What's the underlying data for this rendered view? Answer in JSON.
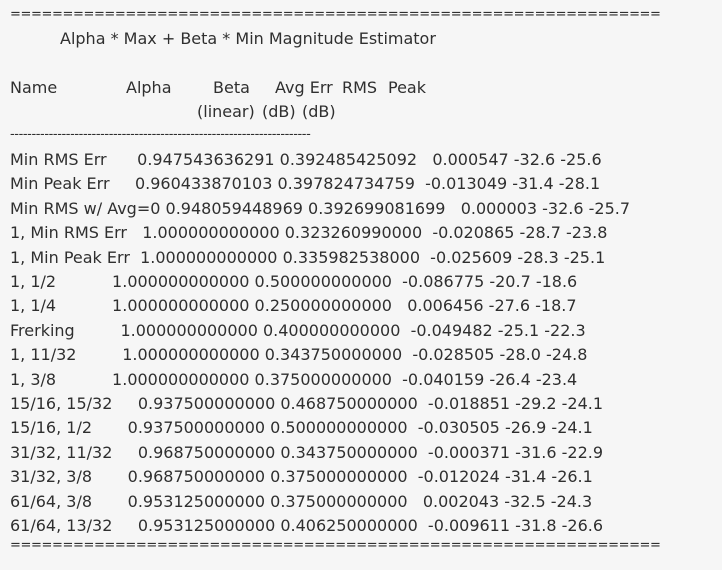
{
  "top_rule": "===================================================================",
  "title": "Alpha * Max + Beta * Min Magnitude Estimator",
  "header": {
    "name": "Name",
    "alpha": "Alpha",
    "beta": "Beta",
    "avg_err": "Avg Err",
    "rms": "RMS",
    "peak": "Peak",
    "linear": "(linear)",
    "rms_unit": "(dB)",
    "peak_unit": "(dB)"
  },
  "dash_rule": "----------------------------------------------------------------------",
  "rows": [
    "Min RMS Err      0.947543636291 0.392485425092   0.000547 -32.6 -25.6",
    "Min Peak Err     0.960433870103 0.397824734759  -0.013049 -31.4 -28.1",
    "Min RMS w/ Avg=0 0.948059448969 0.392699081699   0.000003 -32.6 -25.7",
    "1, Min RMS Err   1.000000000000 0.323260990000  -0.020865 -28.7 -23.8",
    "1, Min Peak Err  1.000000000000 0.335982538000  -0.025609 -28.3 -25.1",
    "1, 1/2           1.000000000000 0.500000000000  -0.086775 -20.7 -18.6",
    "1, 1/4           1.000000000000 0.250000000000   0.006456 -27.6 -18.7",
    "Frerking         1.000000000000 0.400000000000  -0.049482 -25.1 -22.3",
    "1, 11/32         1.000000000000 0.343750000000  -0.028505 -28.0 -24.8",
    "1, 3/8           1.000000000000 0.375000000000  -0.040159 -26.4 -23.4",
    "15/16, 15/32     0.937500000000 0.468750000000  -0.018851 -29.2 -24.1",
    "15/16, 1/2       0.937500000000 0.500000000000  -0.030505 -26.9 -24.1",
    "31/32, 11/32     0.968750000000 0.343750000000  -0.000371 -31.6 -22.9",
    "31/32, 3/8       0.968750000000 0.375000000000  -0.012024 -31.4 -26.1",
    "61/64, 3/8       0.953125000000 0.375000000000   0.002043 -32.5 -24.3",
    "61/64, 13/32     0.953125000000 0.406250000000  -0.009611 -31.8 -26.6"
  ],
  "bottom_rule": "==================================================================="
}
